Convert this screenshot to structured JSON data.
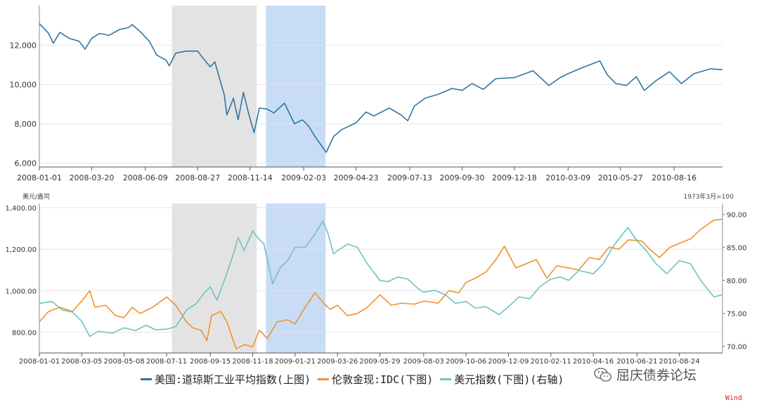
{
  "chart_data": [
    {
      "type": "line",
      "panel": "top",
      "title": "",
      "xlabel": "",
      "ylabel": "",
      "x_range": [
        "2008-01-01",
        "2010-10-28"
      ],
      "ylim": [
        5800,
        13800
      ],
      "y_ticks": [
        "6,000",
        "8,000",
        "10,000",
        "12,000"
      ],
      "y_tick_values": [
        6000,
        8000,
        10000,
        12000
      ],
      "x_ticks": [
        "2008-01-01",
        "2008-03-20",
        "2008-06-09",
        "2008-08-27",
        "2008-11-14",
        "2009-02-03",
        "2009-04-23",
        "2009-07-13",
        "2009-09-30",
        "2009-12-18",
        "2010-03-09",
        "2010-05-27",
        "2010-08-16"
      ],
      "grid": true,
      "shaded_periods": [
        {
          "start": "2008-07-19",
          "end": "2008-11-24",
          "color": "#e3e3e3"
        },
        {
          "start": "2008-12-08",
          "end": "2009-03-08",
          "color": "#c8dcf6"
        }
      ],
      "series": [
        {
          "name": "美国:道琼斯工业平均指数(上图)",
          "color": "#2e77a3",
          "points": [
            [
              "2008-01-01",
              13100
            ],
            [
              "2008-01-15",
              12600
            ],
            [
              "2008-01-22",
              12100
            ],
            [
              "2008-02-01",
              12650
            ],
            [
              "2008-02-15",
              12350
            ],
            [
              "2008-03-01",
              12200
            ],
            [
              "2008-03-10",
              11800
            ],
            [
              "2008-03-20",
              12350
            ],
            [
              "2008-04-01",
              12600
            ],
            [
              "2008-04-15",
              12500
            ],
            [
              "2008-05-01",
              12800
            ],
            [
              "2008-05-15",
              12900
            ],
            [
              "2008-05-20",
              13050
            ],
            [
              "2008-06-01",
              12700
            ],
            [
              "2008-06-15",
              12200
            ],
            [
              "2008-06-26",
              11500
            ],
            [
              "2008-07-10",
              11250
            ],
            [
              "2008-07-15",
              10950
            ],
            [
              "2008-07-25",
              11600
            ],
            [
              "2008-08-10",
              11700
            ],
            [
              "2008-08-27",
              11700
            ],
            [
              "2008-09-05",
              11300
            ],
            [
              "2008-09-15",
              10900
            ],
            [
              "2008-09-22",
              11150
            ],
            [
              "2008-09-29",
              10300
            ],
            [
              "2008-10-06",
              9500
            ],
            [
              "2008-10-10",
              8450
            ],
            [
              "2008-10-20",
              9300
            ],
            [
              "2008-10-27",
              8200
            ],
            [
              "2008-11-04",
              9600
            ],
            [
              "2008-11-12",
              8500
            ],
            [
              "2008-11-20",
              7550
            ],
            [
              "2008-11-28",
              8800
            ],
            [
              "2008-12-10",
              8750
            ],
            [
              "2008-12-20",
              8550
            ],
            [
              "2009-01-05",
              9050
            ],
            [
              "2009-01-20",
              8000
            ],
            [
              "2009-02-01",
              8200
            ],
            [
              "2009-02-10",
              7900
            ],
            [
              "2009-02-20",
              7350
            ],
            [
              "2009-03-09",
              6550
            ],
            [
              "2009-03-20",
              7350
            ],
            [
              "2009-04-01",
              7700
            ],
            [
              "2009-04-23",
              8050
            ],
            [
              "2009-05-08",
              8600
            ],
            [
              "2009-05-20",
              8400
            ],
            [
              "2009-06-12",
              8800
            ],
            [
              "2009-06-30",
              8450
            ],
            [
              "2009-07-10",
              8150
            ],
            [
              "2009-07-20",
              8900
            ],
            [
              "2009-08-05",
              9300
            ],
            [
              "2009-08-25",
              9500
            ],
            [
              "2009-09-15",
              9800
            ],
            [
              "2009-09-30",
              9700
            ],
            [
              "2009-10-15",
              10050
            ],
            [
              "2009-11-01",
              9750
            ],
            [
              "2009-11-20",
              10300
            ],
            [
              "2009-12-18",
              10350
            ],
            [
              "2010-01-15",
              10700
            ],
            [
              "2010-02-08",
              9950
            ],
            [
              "2010-02-25",
              10350
            ],
            [
              "2010-03-09",
              10550
            ],
            [
              "2010-03-30",
              10850
            ],
            [
              "2010-04-26",
              11200
            ],
            [
              "2010-05-07",
              10500
            ],
            [
              "2010-05-20",
              10050
            ],
            [
              "2010-06-05",
              9950
            ],
            [
              "2010-06-20",
              10400
            ],
            [
              "2010-07-02",
              9700
            ],
            [
              "2010-07-20",
              10200
            ],
            [
              "2010-08-09",
              10650
            ],
            [
              "2010-08-27",
              10050
            ],
            [
              "2010-09-15",
              10550
            ],
            [
              "2010-10-10",
              10800
            ],
            [
              "2010-10-28",
              10750
            ]
          ]
        }
      ]
    },
    {
      "type": "line",
      "panel": "bottom",
      "title": "",
      "xlabel": "",
      "ylabel": "美元/盎司",
      "y2label": "1973年3月=100",
      "x_range": [
        "2008-01-01",
        "2010-10-28"
      ],
      "ylim": [
        700,
        1400
      ],
      "y2lim": [
        69,
        91
      ],
      "y_ticks": [
        "800.00",
        "1,000.00",
        "1,200.00",
        "1,400.00"
      ],
      "y_tick_values": [
        800,
        1000,
        1200,
        1400
      ],
      "y2_ticks": [
        "70.00",
        "75.00",
        "80.00",
        "85.00",
        "90.00"
      ],
      "y2_tick_values": [
        70,
        75,
        80,
        85,
        90
      ],
      "x_ticks": [
        "2008-01-01",
        "2008-03-05",
        "2008-05-08",
        "2008-07-11",
        "2008-09-15",
        "2008-11-18",
        "2009-01-21",
        "2009-03-26",
        "2009-05-29",
        "2009-08-03",
        "2009-10-06",
        "2009-12-09",
        "2010-02-11",
        "2010-04-16",
        "2010-06-21",
        "2010-08-24"
      ],
      "grid": true,
      "shaded_periods": [
        {
          "start": "2008-07-19",
          "end": "2008-11-24",
          "color": "#e3e3e3"
        },
        {
          "start": "2008-12-08",
          "end": "2009-03-08",
          "color": "#c8dcf6"
        }
      ],
      "series": [
        {
          "name": "伦敦金现:IDC(下图)",
          "axis": "left",
          "color": "#f0922a",
          "points": [
            [
              "2008-01-01",
              850
            ],
            [
              "2008-01-15",
              900
            ],
            [
              "2008-02-01",
              920
            ],
            [
              "2008-02-20",
              900
            ],
            [
              "2008-03-05",
              950
            ],
            [
              "2008-03-17",
              1000
            ],
            [
              "2008-03-25",
              920
            ],
            [
              "2008-04-10",
              930
            ],
            [
              "2008-04-25",
              880
            ],
            [
              "2008-05-08",
              870
            ],
            [
              "2008-05-20",
              920
            ],
            [
              "2008-06-01",
              890
            ],
            [
              "2008-06-20",
              920
            ],
            [
              "2008-07-11",
              970
            ],
            [
              "2008-07-25",
              930
            ],
            [
              "2008-08-10",
              850
            ],
            [
              "2008-08-20",
              820
            ],
            [
              "2008-09-01",
              810
            ],
            [
              "2008-09-10",
              760
            ],
            [
              "2008-09-17",
              880
            ],
            [
              "2008-10-01",
              900
            ],
            [
              "2008-10-10",
              850
            ],
            [
              "2008-10-24",
              720
            ],
            [
              "2008-11-05",
              740
            ],
            [
              "2008-11-18",
              730
            ],
            [
              "2008-11-28",
              810
            ],
            [
              "2008-12-10",
              770
            ],
            [
              "2008-12-25",
              850
            ],
            [
              "2009-01-10",
              860
            ],
            [
              "2009-01-21",
              840
            ],
            [
              "2009-02-05",
              920
            ],
            [
              "2009-02-20",
              990
            ],
            [
              "2009-03-05",
              940
            ],
            [
              "2009-03-15",
              910
            ],
            [
              "2009-03-26",
              930
            ],
            [
              "2009-04-10",
              880
            ],
            [
              "2009-04-25",
              890
            ],
            [
              "2009-05-10",
              920
            ],
            [
              "2009-05-29",
              980
            ],
            [
              "2009-06-15",
              930
            ],
            [
              "2009-07-01",
              940
            ],
            [
              "2009-07-20",
              935
            ],
            [
              "2009-08-03",
              950
            ],
            [
              "2009-08-25",
              940
            ],
            [
              "2009-09-10",
              1000
            ],
            [
              "2009-09-25",
              990
            ],
            [
              "2009-10-06",
              1040
            ],
            [
              "2009-10-20",
              1060
            ],
            [
              "2009-11-05",
              1090
            ],
            [
              "2009-11-20",
              1150
            ],
            [
              "2009-12-03",
              1215
            ],
            [
              "2009-12-20",
              1110
            ],
            [
              "2010-01-05",
              1130
            ],
            [
              "2010-01-20",
              1150
            ],
            [
              "2010-02-05",
              1060
            ],
            [
              "2010-02-20",
              1120
            ],
            [
              "2010-03-10",
              1110
            ],
            [
              "2010-03-25",
              1100
            ],
            [
              "2010-04-10",
              1160
            ],
            [
              "2010-04-25",
              1150
            ],
            [
              "2010-05-10",
              1210
            ],
            [
              "2010-05-25",
              1200
            ],
            [
              "2010-06-08",
              1245
            ],
            [
              "2010-06-28",
              1240
            ],
            [
              "2010-07-10",
              1200
            ],
            [
              "2010-07-25",
              1160
            ],
            [
              "2010-08-10",
              1210
            ],
            [
              "2010-08-25",
              1230
            ],
            [
              "2010-09-10",
              1250
            ],
            [
              "2010-09-25",
              1295
            ],
            [
              "2010-10-15",
              1340
            ],
            [
              "2010-10-28",
              1345
            ]
          ]
        },
        {
          "name": "美元指数(下图)(右轴)",
          "axis": "right",
          "color": "#6ec2c2",
          "points": [
            [
              "2008-01-01",
              76.5
            ],
            [
              "2008-01-20",
              76.8
            ],
            [
              "2008-02-05",
              75.5
            ],
            [
              "2008-02-20",
              75.2
            ],
            [
              "2008-03-05",
              73.8
            ],
            [
              "2008-03-17",
              71.5
            ],
            [
              "2008-03-30",
              72.3
            ],
            [
              "2008-04-20",
              72.0
            ],
            [
              "2008-05-08",
              72.8
            ],
            [
              "2008-05-25",
              72.4
            ],
            [
              "2008-06-10",
              73.2
            ],
            [
              "2008-06-25",
              72.5
            ],
            [
              "2008-07-11",
              72.6
            ],
            [
              "2008-07-25",
              73.0
            ],
            [
              "2008-08-10",
              75.5
            ],
            [
              "2008-08-25",
              76.5
            ],
            [
              "2008-09-05",
              78.0
            ],
            [
              "2008-09-15",
              79.0
            ],
            [
              "2008-09-25",
              77.0
            ],
            [
              "2008-10-08",
              80.5
            ],
            [
              "2008-10-20",
              84.0
            ],
            [
              "2008-10-27",
              86.5
            ],
            [
              "2008-11-05",
              84.5
            ],
            [
              "2008-11-18",
              87.5
            ],
            [
              "2008-11-25",
              86.5
            ],
            [
              "2008-12-05",
              85.5
            ],
            [
              "2008-12-18",
              79.5
            ],
            [
              "2008-12-30",
              82.0
            ],
            [
              "2009-01-10",
              83.0
            ],
            [
              "2009-01-21",
              85.0
            ],
            [
              "2009-02-05",
              85.0
            ],
            [
              "2009-02-20",
              87.0
            ],
            [
              "2009-03-04",
              89.0
            ],
            [
              "2009-03-12",
              87.0
            ],
            [
              "2009-03-20",
              84.0
            ],
            [
              "2009-03-26",
              84.5
            ],
            [
              "2009-04-10",
              85.5
            ],
            [
              "2009-04-25",
              85.0
            ],
            [
              "2009-05-10",
              82.5
            ],
            [
              "2009-05-29",
              80.0
            ],
            [
              "2009-06-10",
              79.8
            ],
            [
              "2009-06-25",
              80.5
            ],
            [
              "2009-07-10",
              80.2
            ],
            [
              "2009-07-25",
              78.8
            ],
            [
              "2009-08-03",
              78.2
            ],
            [
              "2009-08-20",
              78.5
            ],
            [
              "2009-09-05",
              77.8
            ],
            [
              "2009-09-20",
              76.5
            ],
            [
              "2009-10-06",
              76.8
            ],
            [
              "2009-10-20",
              75.8
            ],
            [
              "2009-11-05",
              76.0
            ],
            [
              "2009-11-25",
              74.8
            ],
            [
              "2009-12-09",
              76.0
            ],
            [
              "2009-12-25",
              77.5
            ],
            [
              "2010-01-10",
              77.2
            ],
            [
              "2010-01-25",
              79.0
            ],
            [
              "2010-02-11",
              80.2
            ],
            [
              "2010-02-25",
              80.5
            ],
            [
              "2010-03-10",
              80.0
            ],
            [
              "2010-03-25",
              81.5
            ],
            [
              "2010-04-16",
              81.0
            ],
            [
              "2010-05-01",
              82.5
            ],
            [
              "2010-05-15",
              85.0
            ],
            [
              "2010-06-07",
              88.0
            ],
            [
              "2010-06-21",
              86.0
            ],
            [
              "2010-07-05",
              84.5
            ],
            [
              "2010-07-20",
              82.5
            ],
            [
              "2010-08-05",
              81.0
            ],
            [
              "2010-08-24",
              83.0
            ],
            [
              "2010-09-10",
              82.5
            ],
            [
              "2010-09-25",
              80.0
            ],
            [
              "2010-10-15",
              77.5
            ],
            [
              "2010-10-28",
              77.8
            ]
          ]
        }
      ]
    }
  ],
  "legend": [
    {
      "label": "美国:道琼斯工业平均指数(上图)",
      "color": "#2e77a3"
    },
    {
      "label": "伦敦金现:IDC(下图)",
      "color": "#f0922a"
    },
    {
      "label": "美元指数(下图)(右轴)",
      "color": "#6ec2c2"
    }
  ],
  "watermark": {
    "text": "屈庆债券论坛",
    "icon": "wechat-icon"
  },
  "source_label": "Wind"
}
